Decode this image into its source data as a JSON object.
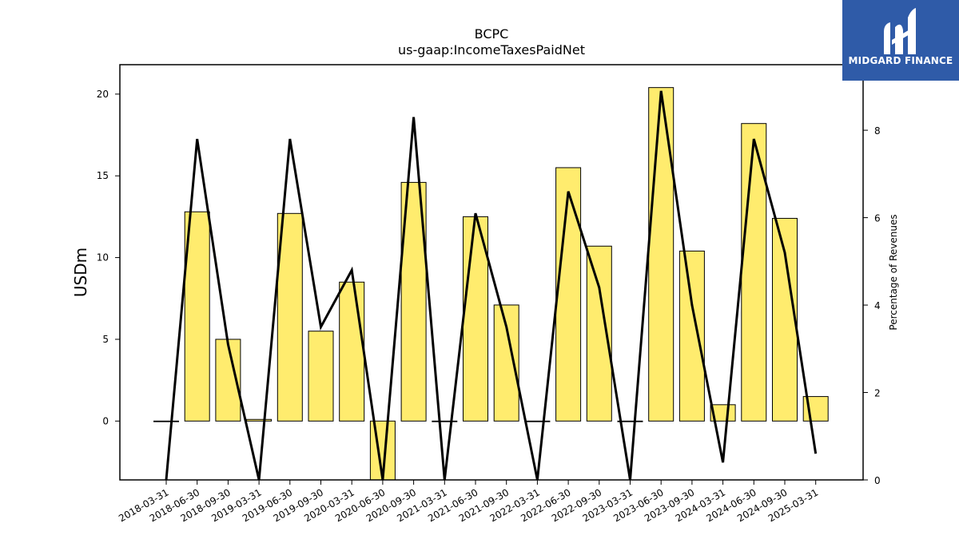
{
  "logo": {
    "text": "MIDGARD FINANCE",
    "color": "#2f5ba8"
  },
  "chart_data": {
    "type": "bar",
    "title": "BCPC",
    "subtitle": "us-gaap:IncomeTaxesPaidNet",
    "ylabel": "USDm",
    "y2label": "Percentage of Revenues",
    "ylim": [
      -3.6,
      21.8
    ],
    "y2lim": [
      0,
      9.5
    ],
    "yticks": [
      0,
      5,
      10,
      15,
      20
    ],
    "y2ticks": [
      0,
      2,
      4,
      6,
      8
    ],
    "bar_color": "#ffec6e",
    "line_color": "#000000",
    "grid": false,
    "categories": [
      "2018-03-31",
      "2018-06-30",
      "2018-09-30",
      "2019-03-31",
      "2019-06-30",
      "2019-09-30",
      "2020-03-31",
      "2020-06-30",
      "2020-09-30",
      "2021-03-31",
      "2021-06-30",
      "2021-09-30",
      "2022-03-31",
      "2022-06-30",
      "2022-09-30",
      "2023-03-31",
      "2023-06-30",
      "2023-09-30",
      "2024-03-31",
      "2024-06-30",
      "2024-09-30",
      "2025-03-31"
    ],
    "series": [
      {
        "kind": "bar",
        "axis": "left",
        "values": [
          0.0,
          12.8,
          5.0,
          0.1,
          12.7,
          5.5,
          8.5,
          -3.6,
          14.6,
          0.0,
          12.5,
          7.1,
          0.0,
          15.5,
          10.7,
          0.0,
          20.4,
          10.4,
          1.0,
          18.2,
          12.4,
          1.5
        ]
      },
      {
        "kind": "line",
        "axis": "right",
        "values": [
          0.0,
          7.8,
          3.1,
          0.0,
          7.8,
          3.5,
          4.8,
          0.0,
          8.3,
          0.0,
          6.1,
          3.5,
          0.0,
          6.6,
          4.4,
          0.0,
          8.9,
          4.0,
          0.4,
          7.8,
          5.2,
          0.6
        ]
      }
    ]
  }
}
